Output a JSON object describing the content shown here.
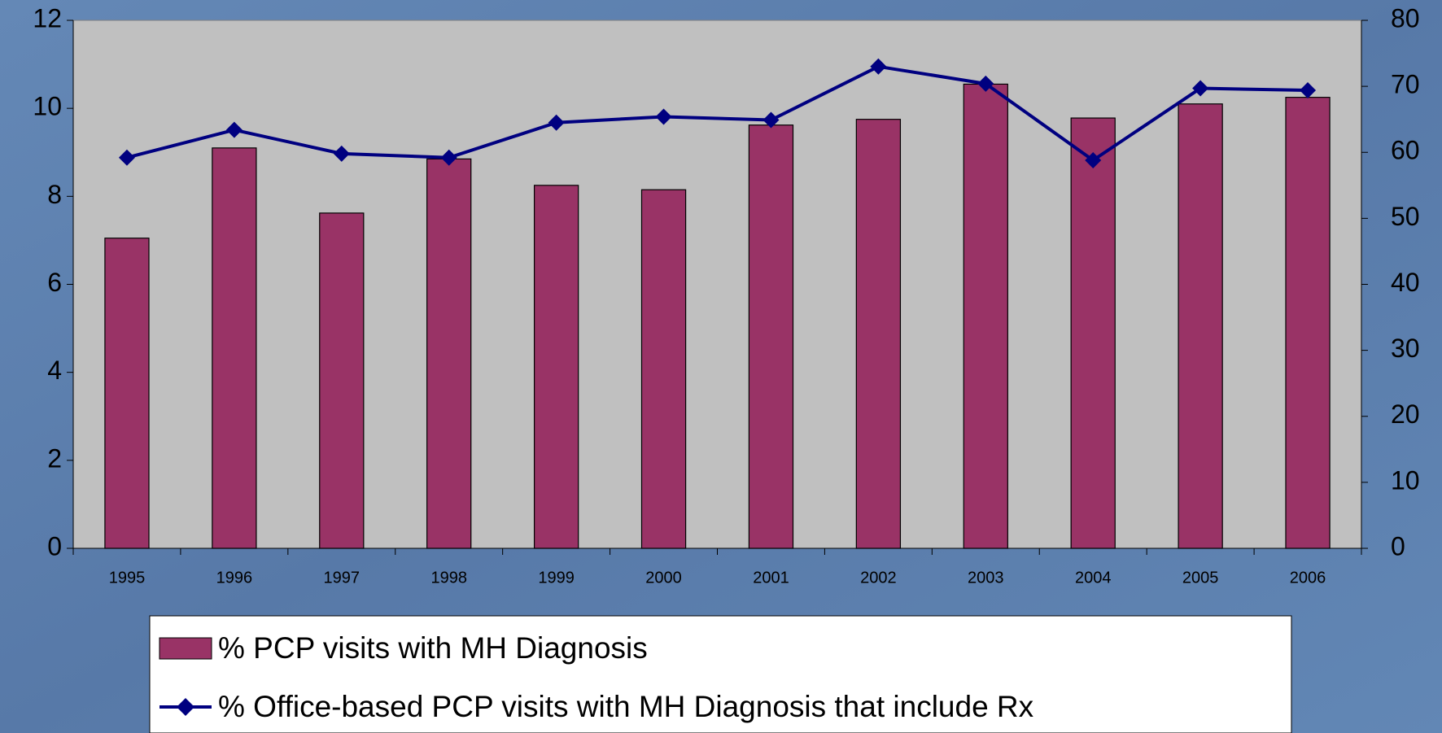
{
  "chart_data": {
    "type": "bar_line",
    "categories": [
      "1995",
      "1996",
      "1997",
      "1998",
      "1999",
      "2000",
      "2001",
      "2002",
      "2003",
      "2004",
      "2005",
      "2006"
    ],
    "series": [
      {
        "name": "% PCP visits with MH Diagnosis",
        "type": "bar",
        "color": "#993366",
        "values": [
          7.05,
          9.1,
          7.62,
          8.85,
          8.25,
          8.15,
          9.62,
          9.75,
          10.55,
          9.78,
          10.1,
          10.25
        ]
      },
      {
        "name": "% Office-based PCP visits with MH Diagnosis that include Rx",
        "type": "line",
        "color": "#000080",
        "axis": "y2",
        "values": [
          59.2,
          63.4,
          59.8,
          59.2,
          64.5,
          65.4,
          64.9,
          73.0,
          70.4,
          58.8,
          69.7,
          69.4
        ]
      }
    ],
    "ylim": [
      0,
      12
    ],
    "yticks": [
      0,
      2,
      4,
      6,
      8,
      10,
      12
    ],
    "y2lim": [
      0,
      80
    ],
    "y2ticks": [
      0,
      10,
      20,
      30,
      40,
      50,
      60,
      70,
      80
    ],
    "plot_background": "#c0c0c0"
  }
}
